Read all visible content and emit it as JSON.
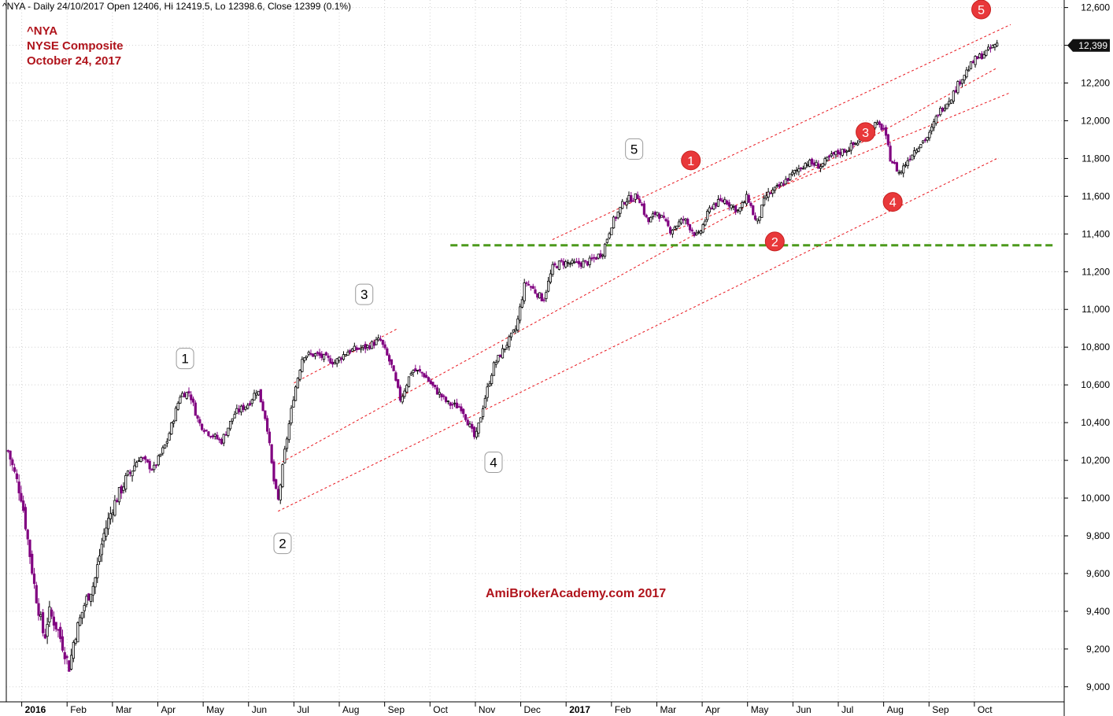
{
  "header": {
    "info": "^NYA - Daily 24/10/2017 Open 12406, Hi 12419.5, Lo 12398.6, Close 12399 (0.1%)"
  },
  "title": {
    "line1": "^NYA",
    "line2": "NYSE Composite",
    "line3": "October 24, 2017"
  },
  "watermark": "AmiBrokerAcademy.com  2017",
  "last_price_label": "12,399",
  "colors": {
    "up_candle": "#000000",
    "down_candle": "#800080",
    "title": "#b0141c",
    "channel": "#e8141c",
    "support": "#4c9a1c",
    "badge_red": "#e8383a",
    "last_price_bg": "#111111"
  },
  "chart_data": {
    "type": "candlestick",
    "ylim": [
      8920,
      12640
    ],
    "y_ticks": [
      {
        "v": 9000,
        "label": "9,000"
      },
      {
        "v": 9200,
        "label": "9,200"
      },
      {
        "v": 9400,
        "label": "9,400"
      },
      {
        "v": 9600,
        "label": "9,600"
      },
      {
        "v": 9800,
        "label": "9,800"
      },
      {
        "v": 10000,
        "label": "10,000"
      },
      {
        "v": 10200,
        "label": "10,200"
      },
      {
        "v": 10400,
        "label": "10,400"
      },
      {
        "v": 10600,
        "label": "10,600"
      },
      {
        "v": 10800,
        "label": "10,800"
      },
      {
        "v": 11000,
        "label": "11,000"
      },
      {
        "v": 11200,
        "label": "11,200"
      },
      {
        "v": 11400,
        "label": "11,400"
      },
      {
        "v": 11600,
        "label": "11,600"
      },
      {
        "v": 11800,
        "label": "11,800"
      },
      {
        "v": 12000,
        "label": "12,000"
      },
      {
        "v": 12200,
        "label": "12,200"
      },
      {
        "v": 12400,
        "label": "12,400"
      },
      {
        "v": 12600,
        "label": "12,600"
      }
    ],
    "x_ticks": [
      {
        "t": 0,
        "label": "2016",
        "bold": true
      },
      {
        "t": 1.0,
        "label": "Feb"
      },
      {
        "t": 2.0,
        "label": "Mar"
      },
      {
        "t": 3.0,
        "label": "Apr"
      },
      {
        "t": 4.0,
        "label": "May"
      },
      {
        "t": 5.0,
        "label": "Jun"
      },
      {
        "t": 6.0,
        "label": "Jul"
      },
      {
        "t": 7.0,
        "label": "Aug"
      },
      {
        "t": 8.0,
        "label": "Sep"
      },
      {
        "t": 9.0,
        "label": "Oct"
      },
      {
        "t": 10.0,
        "label": "Nov"
      },
      {
        "t": 11.0,
        "label": "Dec"
      },
      {
        "t": 12.0,
        "label": "2017",
        "bold": true
      },
      {
        "t": 13.0,
        "label": "Feb"
      },
      {
        "t": 14.0,
        "label": "Mar"
      },
      {
        "t": 15.0,
        "label": "Apr"
      },
      {
        "t": 16.0,
        "label": "May"
      },
      {
        "t": 17.0,
        "label": "Jun"
      },
      {
        "t": 18.0,
        "label": "Jul"
      },
      {
        "t": 19.0,
        "label": "Aug"
      },
      {
        "t": 20.0,
        "label": "Sep"
      },
      {
        "t": 21.0,
        "label": "Oct"
      }
    ],
    "price_path": [
      [
        -0.3,
        10250
      ],
      [
        0.0,
        10000
      ],
      [
        0.3,
        9500
      ],
      [
        0.5,
        9250
      ],
      [
        0.6,
        9400
      ],
      [
        0.8,
        9300
      ],
      [
        1.05,
        9100
      ],
      [
        1.15,
        9250
      ],
      [
        1.4,
        9450
      ],
      [
        1.6,
        9550
      ],
      [
        1.8,
        9800
      ],
      [
        2.0,
        9950
      ],
      [
        2.3,
        10100
      ],
      [
        2.6,
        10220
      ],
      [
        2.9,
        10150
      ],
      [
        3.2,
        10300
      ],
      [
        3.5,
        10550
      ],
      [
        3.7,
        10560
      ],
      [
        3.9,
        10400
      ],
      [
        4.1,
        10350
      ],
      [
        4.4,
        10300
      ],
      [
        4.7,
        10450
      ],
      [
        5.0,
        10500
      ],
      [
        5.2,
        10580
      ],
      [
        5.4,
        10400
      ],
      [
        5.55,
        10100
      ],
      [
        5.65,
        9980
      ],
      [
        5.8,
        10250
      ],
      [
        6.0,
        10550
      ],
      [
        6.2,
        10760
      ],
      [
        6.5,
        10760
      ],
      [
        6.9,
        10720
      ],
      [
        7.2,
        10780
      ],
      [
        7.6,
        10800
      ],
      [
        7.9,
        10840
      ],
      [
        8.15,
        10700
      ],
      [
        8.35,
        10520
      ],
      [
        8.6,
        10680
      ],
      [
        8.85,
        10660
      ],
      [
        9.1,
        10580
      ],
      [
        9.4,
        10500
      ],
      [
        9.7,
        10480
      ],
      [
        10.0,
        10310
      ],
      [
        10.2,
        10520
      ],
      [
        10.4,
        10700
      ],
      [
        10.7,
        10820
      ],
      [
        10.9,
        10900
      ],
      [
        11.1,
        11150
      ],
      [
        11.3,
        11100
      ],
      [
        11.5,
        11050
      ],
      [
        11.7,
        11220
      ],
      [
        11.9,
        11250
      ],
      [
        12.2,
        11240
      ],
      [
        12.5,
        11250
      ],
      [
        12.8,
        11300
      ],
      [
        13.0,
        11450
      ],
      [
        13.3,
        11580
      ],
      [
        13.6,
        11600
      ],
      [
        13.8,
        11460
      ],
      [
        14.0,
        11520
      ],
      [
        14.3,
        11420
      ],
      [
        14.6,
        11480
      ],
      [
        14.9,
        11380
      ],
      [
        15.2,
        11550
      ],
      [
        15.5,
        11580
      ],
      [
        15.8,
        11520
      ],
      [
        16.0,
        11600
      ],
      [
        16.2,
        11450
      ],
      [
        16.4,
        11600
      ],
      [
        16.7,
        11650
      ],
      [
        17.0,
        11720
      ],
      [
        17.3,
        11780
      ],
      [
        17.6,
        11760
      ],
      [
        17.9,
        11820
      ],
      [
        18.2,
        11850
      ],
      [
        18.5,
        11900
      ],
      [
        18.8,
        11980
      ],
      [
        19.0,
        11960
      ],
      [
        19.15,
        11800
      ],
      [
        19.35,
        11720
      ],
      [
        19.6,
        11820
      ],
      [
        19.8,
        11880
      ],
      [
        20.0,
        11920
      ],
      [
        20.2,
        12040
      ],
      [
        20.5,
        12130
      ],
      [
        20.7,
        12220
      ],
      [
        21.0,
        12320
      ],
      [
        21.3,
        12370
      ],
      [
        21.5,
        12410
      ]
    ],
    "channel_lines": [
      {
        "from": [
          6.0,
          10610
        ],
        "to": [
          8.3,
          10900
        ]
      },
      {
        "from": [
          5.65,
          10180
        ],
        "to": [
          21.5,
          12280
        ]
      },
      {
        "from": [
          5.65,
          9930
        ],
        "to": [
          21.5,
          11800
        ]
      },
      {
        "from": [
          11.7,
          11370
        ],
        "to": [
          21.8,
          12510
        ]
      },
      {
        "from": [
          14.1,
          11390
        ],
        "to": [
          21.8,
          12150
        ]
      }
    ],
    "support_line": {
      "value": 11340,
      "from_t": 9.45,
      "to_t": 22.8
    },
    "wave_labels_2016": [
      {
        "label": "1",
        "t": 3.6,
        "y": 10740
      },
      {
        "label": "2",
        "t": 5.75,
        "y": 9760
      },
      {
        "label": "3",
        "t": 7.55,
        "y": 11080
      },
      {
        "label": "4",
        "t": 10.4,
        "y": 10190
      },
      {
        "label": "5",
        "t": 13.5,
        "y": 11850
      }
    ],
    "wave_labels_2017": [
      {
        "label": "1",
        "t": 14.75,
        "y": 11790
      },
      {
        "label": "2",
        "t": 16.6,
        "y": 11360
      },
      {
        "label": "3",
        "t": 18.6,
        "y": 11940
      },
      {
        "label": "4",
        "t": 19.2,
        "y": 11570
      },
      {
        "label": "5",
        "t": 21.15,
        "y": 12590
      }
    ],
    "last_price": 12399
  }
}
